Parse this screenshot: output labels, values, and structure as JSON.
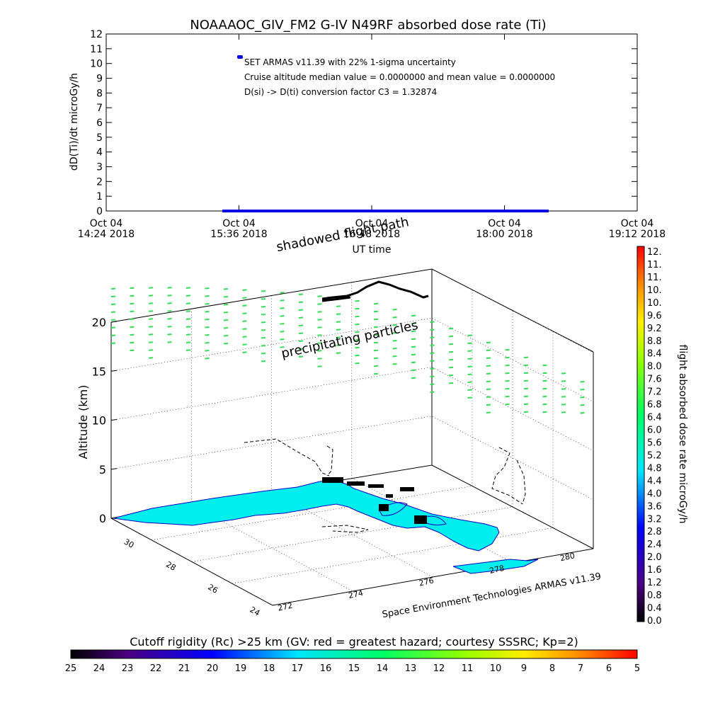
{
  "title": "NOAAAOC_GIV_FM2 G-IV    N49RF  absorbed dose rate (Ti)",
  "chart_data": [
    {
      "type": "line",
      "ylabel": "dD(Ti)/dt microGy/h",
      "xlabel": "UT time",
      "ylim": [
        0,
        12
      ],
      "y_ticks": [
        "0",
        "1",
        "2",
        "3",
        "4",
        "5",
        "6",
        "7",
        "8",
        "9",
        "10",
        "11",
        "12"
      ],
      "x_ticks": [
        {
          "line1": "Oct 04",
          "line2": "14:24 2018"
        },
        {
          "line1": "Oct 04",
          "line2": "15:36 2018"
        },
        {
          "line1": "Oct 04",
          "line2": "16:48 2018"
        },
        {
          "line1": "Oct 04",
          "line2": "18:00 2018"
        },
        {
          "line1": "Oct 04",
          "line2": "19:12 2018"
        }
      ],
      "series": [
        {
          "name": "SET ARMAS v11.39 with 22% 1-sigma uncertainty",
          "color": "#0000e6",
          "x": [
            "15:27",
            "18:24"
          ],
          "values": [
            0.0,
            0.0
          ]
        }
      ],
      "annotations": [
        "SET ARMAS v11.39 with 22% 1-sigma uncertainty",
        "Cruise altitude median value = 0.0000000 and mean value = 0.0000000",
        "D(si) -> D(ti) conversion factor C3 = 1.32874"
      ]
    },
    {
      "type": "scatter",
      "zlabel": "Altitude (km)",
      "z_ticks": [
        "0",
        "5",
        "10",
        "15",
        "20"
      ],
      "lat_ticks": [
        "30",
        "28",
        "26",
        "24"
      ],
      "lon_ticks": [
        "272",
        "274",
        "276",
        "278",
        "280"
      ],
      "labels": {
        "shadowed": "shadowed flight path",
        "precip": "precipitating particles",
        "credit": "Space Environment Technologies ARMAS v11.39"
      }
    }
  ],
  "colorbar_right": {
    "label": "flight absorbed dose rate microGy/h",
    "ticks": [
      "12.",
      "11.",
      "11.",
      "10.",
      "10.",
      "9.6",
      "9.2",
      "8.8",
      "8.4",
      "8.0",
      "7.6",
      "7.2",
      "6.8",
      "6.4",
      "6.0",
      "5.6",
      "5.2",
      "4.8",
      "4.4",
      "4.0",
      "3.6",
      "3.2",
      "2.8",
      "2.4",
      "2.0",
      "1.6",
      "1.2",
      "0.8",
      "0.4",
      "0.0"
    ]
  },
  "colorbar_bottom": {
    "title": "Cutoff rigidity (Rc) >25 km (GV: red = greatest hazard; courtesy SSSRC; Kp=2)",
    "ticks": [
      "25",
      "24",
      "23",
      "22",
      "21",
      "20",
      "19",
      "18",
      "17",
      "16",
      "15",
      "14",
      "13",
      "12",
      "11",
      "10",
      "9",
      "8",
      "7",
      "6",
      "5"
    ]
  },
  "colors": {
    "particle_green": "#33dd55",
    "land_cyan": "#00eeee",
    "track_blue": "#0000e6"
  }
}
